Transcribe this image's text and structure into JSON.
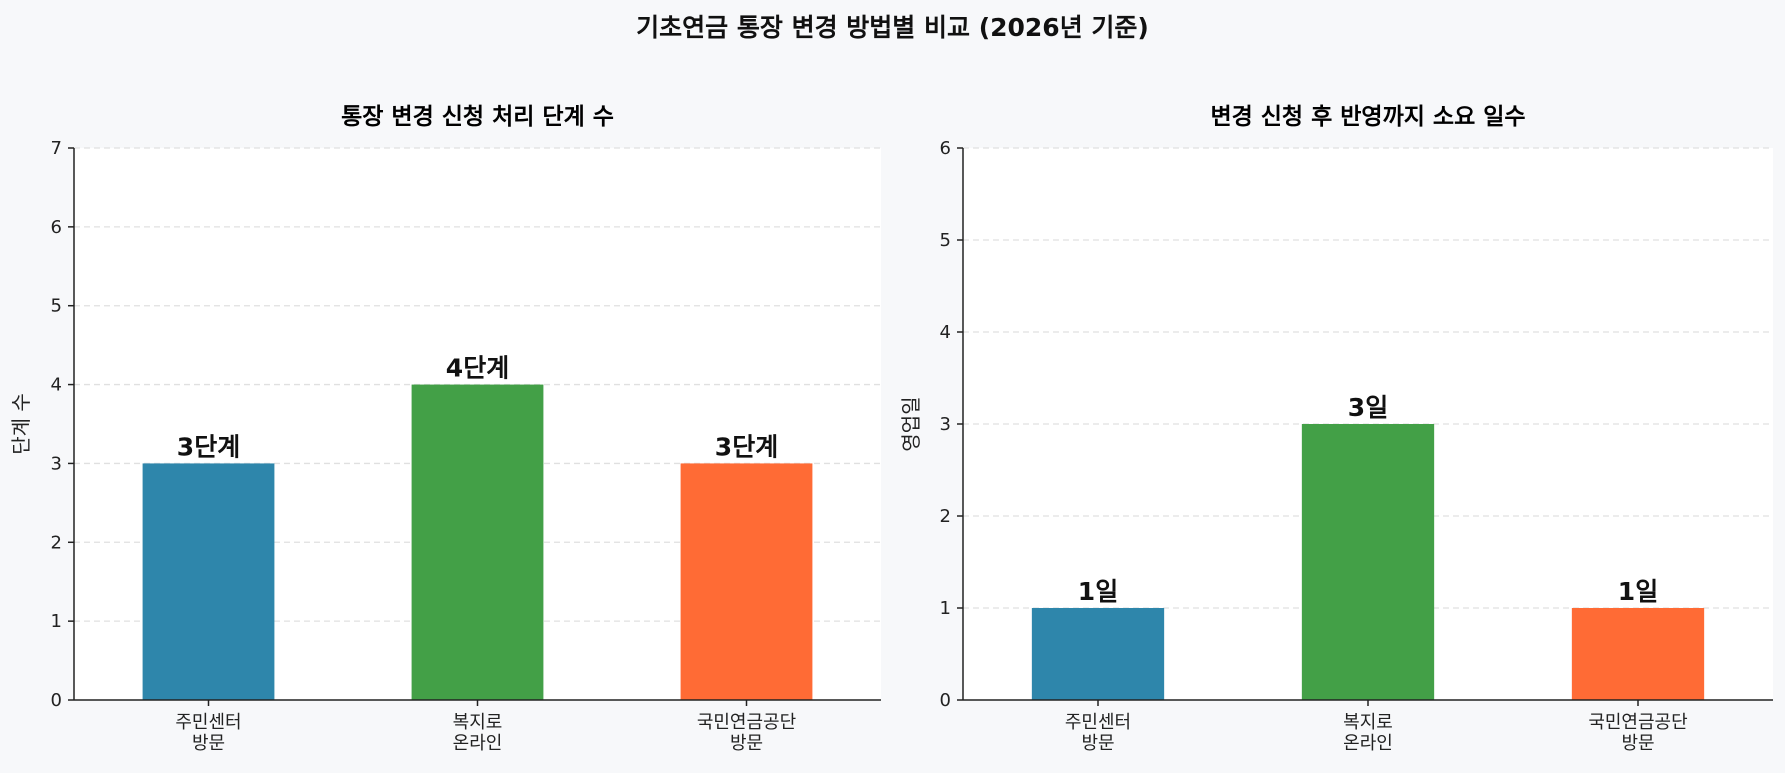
{
  "figure": {
    "title": "기초연금 통장 변경 방법별 비교 (2026년 기준)"
  },
  "chart_data": [
    {
      "type": "bar",
      "title": "통장 변경 신청 처리 단계 수",
      "ylabel": "단계 수",
      "xlabel": "",
      "ylim": [
        0,
        7
      ],
      "yticks": [
        0,
        1,
        2,
        3,
        4,
        5,
        6,
        7
      ],
      "grid": true,
      "categories": [
        [
          "주민센터",
          "방문"
        ],
        [
          "복지로",
          "온라인"
        ],
        [
          "국민연금공단",
          "방문"
        ]
      ],
      "values": [
        3,
        4,
        3
      ],
      "value_labels": [
        "3단계",
        "4단계",
        "3단계"
      ],
      "colors": [
        "#2e86ab",
        "#43a047",
        "#ff6b35"
      ]
    },
    {
      "type": "bar",
      "title": "변경 신청 후 반영까지 소요 일수",
      "ylabel": "영업일",
      "xlabel": "",
      "ylim": [
        0,
        6
      ],
      "yticks": [
        0,
        1,
        2,
        3,
        4,
        5,
        6
      ],
      "grid": true,
      "categories": [
        [
          "주민센터",
          "방문"
        ],
        [
          "복지로",
          "온라인"
        ],
        [
          "국민연금공단",
          "방문"
        ]
      ],
      "values": [
        1,
        3,
        1
      ],
      "value_labels": [
        "1일",
        "3일",
        "1일"
      ],
      "colors": [
        "#2e86ab",
        "#43a047",
        "#ff6b35"
      ]
    }
  ]
}
